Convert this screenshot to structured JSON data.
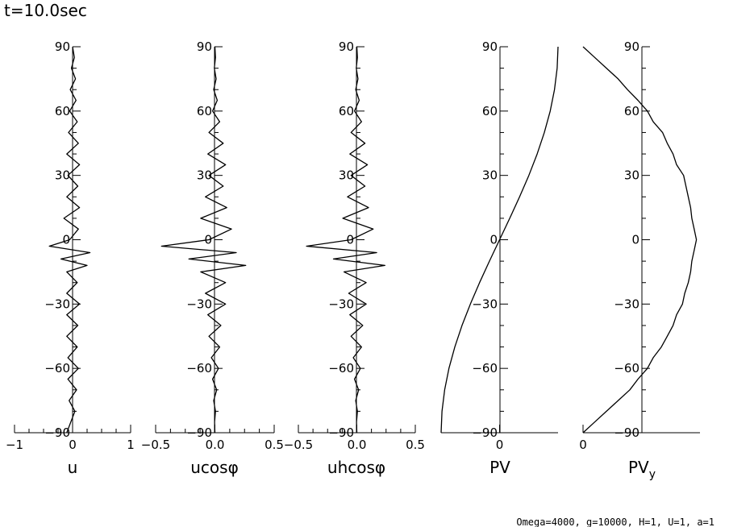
{
  "title": "t=10.0sec",
  "footer": "Omega=4000, g=10000, H=1, U=1, a=1",
  "chart_data": [
    {
      "type": "line",
      "name": "u",
      "xlabel": "u",
      "ylabel": "",
      "xlim": [
        -1,
        1
      ],
      "ylim": [
        -90,
        90
      ],
      "xticks": [
        -1,
        0,
        1
      ],
      "xtick_labels": [
        "−1",
        "0",
        "1"
      ],
      "yticks": [
        -90,
        -60,
        -30,
        0,
        30,
        60,
        90
      ],
      "ytick_labels": [
        "−90",
        "−60",
        "−30",
        "0",
        "30",
        "60",
        "90"
      ],
      "series": [
        {
          "lat": [
            90,
            85,
            80,
            75,
            70,
            65,
            60,
            55,
            50,
            45,
            40,
            35,
            30,
            25,
            20,
            15,
            10,
            5,
            0,
            -3,
            -6,
            -9,
            -12,
            -15,
            -20,
            -25,
            -30,
            -35,
            -40,
            -45,
            -50,
            -55,
            -60,
            -65,
            -70,
            -75,
            -80,
            -85,
            -90
          ],
          "values": [
            0,
            0.03,
            -0.02,
            0.05,
            -0.04,
            0.06,
            -0.05,
            0.08,
            -0.07,
            0.1,
            -0.1,
            0.12,
            -0.08,
            0.09,
            -0.1,
            0.12,
            -0.15,
            0.1,
            -0.05,
            -0.4,
            0.3,
            -0.2,
            0.25,
            -0.1,
            0.08,
            -0.1,
            0.12,
            -0.1,
            0.09,
            -0.1,
            0.08,
            -0.08,
            0.1,
            -0.08,
            0.07,
            -0.06,
            0.04,
            -0.03,
            -0.1
          ]
        }
      ]
    },
    {
      "type": "line",
      "name": "ucosφ",
      "xlabel": "ucosφ",
      "ylabel": "",
      "xlim": [
        -0.5,
        0.5
      ],
      "ylim": [
        -90,
        90
      ],
      "xticks": [
        -0.5,
        0,
        0.5
      ],
      "xtick_labels": [
        "−0.5",
        "0.0",
        "0.5"
      ],
      "yticks": [
        -90,
        -60,
        -30,
        0,
        30,
        60,
        90
      ],
      "ytick_labels": [
        "−90",
        "−60",
        "−30",
        "0",
        "30",
        "60",
        "90"
      ],
      "series": [
        {
          "lat": [
            90,
            85,
            80,
            75,
            70,
            65,
            60,
            55,
            50,
            45,
            40,
            35,
            30,
            25,
            20,
            15,
            10,
            5,
            0,
            -3,
            -6,
            -9,
            -12,
            -15,
            -20,
            -25,
            -30,
            -35,
            -40,
            -45,
            -50,
            -55,
            -60,
            -65,
            -70,
            -75,
            -80,
            -85,
            -90
          ],
          "values": [
            0,
            0.005,
            -0.005,
            0.01,
            -0.01,
            0.02,
            -0.02,
            0.04,
            -0.05,
            0.07,
            -0.06,
            0.09,
            -0.05,
            0.07,
            -0.08,
            0.1,
            -0.12,
            0.14,
            -0.05,
            -0.45,
            0.18,
            -0.22,
            0.26,
            -0.12,
            0.09,
            -0.08,
            0.09,
            -0.06,
            0.05,
            -0.05,
            0.04,
            -0.03,
            0.03,
            -0.02,
            0.015,
            -0.01,
            0.005,
            -0.003,
            0
          ]
        }
      ]
    },
    {
      "type": "line",
      "name": "uhcosφ",
      "xlabel": "uhcosφ",
      "ylabel": "",
      "xlim": [
        -0.5,
        0.5
      ],
      "ylim": [
        -90,
        90
      ],
      "xticks": [
        -0.5,
        0,
        0.5
      ],
      "xtick_labels": [
        "−0.5",
        "0.0",
        "0.5"
      ],
      "yticks": [
        -90,
        -60,
        -30,
        0,
        30,
        60,
        90
      ],
      "ytick_labels": [
        "−90",
        "−60",
        "−30",
        "0",
        "30",
        "60",
        "90"
      ],
      "series": [
        {
          "lat": [
            90,
            85,
            80,
            75,
            70,
            65,
            60,
            55,
            50,
            45,
            40,
            35,
            30,
            25,
            20,
            15,
            10,
            5,
            0,
            -3,
            -6,
            -9,
            -12,
            -15,
            -20,
            -25,
            -30,
            -35,
            -40,
            -45,
            -50,
            -55,
            -60,
            -65,
            -70,
            -75,
            -80,
            -85,
            -90
          ],
          "values": [
            0,
            0.005,
            -0.005,
            0.01,
            -0.01,
            0.02,
            -0.02,
            0.04,
            -0.05,
            0.07,
            -0.06,
            0.09,
            -0.05,
            0.07,
            -0.08,
            0.1,
            -0.12,
            0.14,
            -0.05,
            -0.43,
            0.17,
            -0.2,
            0.24,
            -0.11,
            0.08,
            -0.07,
            0.08,
            -0.06,
            0.05,
            -0.05,
            0.04,
            -0.03,
            0.03,
            -0.02,
            0.015,
            -0.01,
            0.005,
            -0.003,
            0
          ]
        }
      ]
    },
    {
      "type": "line",
      "name": "PV",
      "xlabel": "PV",
      "ylabel": "",
      "xlim": [
        -1,
        1
      ],
      "ylim": [
        -90,
        90
      ],
      "xticks": [
        0
      ],
      "xtick_labels": [
        "0"
      ],
      "yticks": [
        -90,
        -60,
        -30,
        0,
        30,
        60,
        90
      ],
      "ytick_labels": [
        "−90",
        "−60",
        "−30",
        "0",
        "30",
        "60",
        "90"
      ],
      "series": [
        {
          "lat": [
            90,
            80,
            70,
            60,
            50,
            40,
            30,
            20,
            10,
            0,
            -10,
            -20,
            -30,
            -40,
            -50,
            -60,
            -70,
            -80,
            -90
          ],
          "values": [
            1,
            0.985,
            0.94,
            0.866,
            0.766,
            0.643,
            0.5,
            0.342,
            0.174,
            0,
            -0.174,
            -0.342,
            -0.5,
            -0.643,
            -0.766,
            -0.866,
            -0.94,
            -0.985,
            -1
          ]
        }
      ]
    },
    {
      "type": "line",
      "name": "PVy",
      "xlabel": "PV",
      "xlabel_sub": "y",
      "ylabel": "",
      "xlim": [
        0,
        1
      ],
      "ylim": [
        -90,
        90
      ],
      "xticks": [
        0
      ],
      "xtick_labels": [
        "0"
      ],
      "yticks": [
        -90,
        -60,
        -30,
        0,
        30,
        60,
        90
      ],
      "ytick_labels": [
        "−90",
        "−60",
        "−30",
        "0",
        "30",
        "60",
        "90"
      ],
      "series": [
        {
          "lat": [
            90,
            85,
            80,
            75,
            70,
            65,
            60,
            55,
            50,
            45,
            40,
            35,
            30,
            25,
            20,
            15,
            10,
            5,
            0,
            -5,
            -10,
            -15,
            -20,
            -25,
            -30,
            -35,
            -40,
            -45,
            -50,
            -55,
            -60,
            -65,
            -70,
            -75,
            -80,
            -85,
            -90
          ],
          "values": [
            0,
            0.1,
            0.2,
            0.3,
            0.38,
            0.47,
            0.55,
            0.6,
            0.68,
            0.72,
            0.77,
            0.8,
            0.86,
            0.88,
            0.9,
            0.92,
            0.93,
            0.95,
            0.97,
            0.95,
            0.93,
            0.92,
            0.9,
            0.87,
            0.85,
            0.8,
            0.77,
            0.72,
            0.67,
            0.6,
            0.55,
            0.47,
            0.4,
            0.3,
            0.2,
            0.1,
            0
          ]
        }
      ]
    }
  ]
}
